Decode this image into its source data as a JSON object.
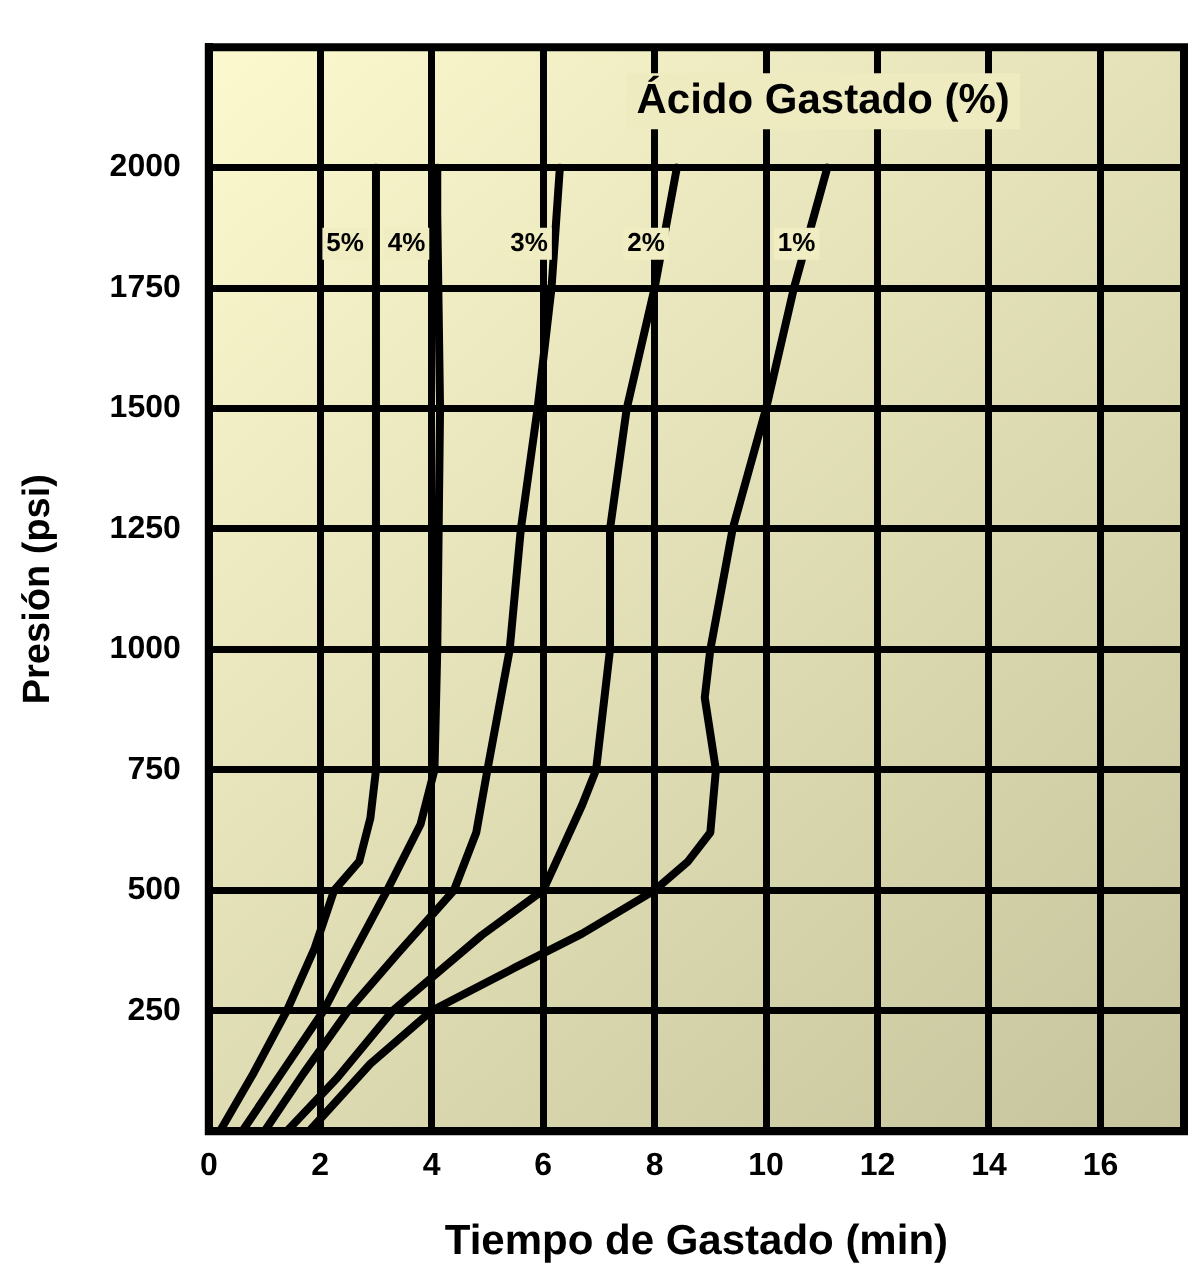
{
  "chart_data": {
    "type": "line",
    "title": "Ácido Gastado (%)",
    "xlabel": "Tiempo de Gastado (min)",
    "ylabel": "Presión (psi)",
    "xlim": [
      0,
      17.5
    ],
    "xticks": [
      0,
      2,
      4,
      6,
      8,
      10,
      12,
      14,
      16
    ],
    "ylim": [
      0,
      2250
    ],
    "yticks": [
      250,
      500,
      750,
      1000,
      1250,
      1500,
      1750,
      2000
    ],
    "grid": true,
    "legend": false,
    "marker": "none",
    "line_style": "solid",
    "series": [
      {
        "name": "5%",
        "color": "#000000",
        "x": [
          0.2,
          0.8,
          1.4,
          1.9,
          2.25,
          2.7,
          2.9,
          3.0,
          3.0,
          3.0,
          3.0
        ],
        "values": [
          0,
          120,
          250,
          380,
          500,
          560,
          650,
          750,
          1000,
          1500,
          2000
        ]
      },
      {
        "name": "4%",
        "color": "#000000",
        "x": [
          0.6,
          1.3,
          2.06,
          2.6,
          3.2,
          3.8,
          4.05,
          4.1,
          4.15,
          4.1,
          4.1
        ],
        "values": [
          0,
          120,
          250,
          370,
          500,
          637,
          750,
          1000,
          1500,
          1900,
          2000
        ]
      },
      {
        "name": "3%",
        "color": "#000000",
        "x": [
          1.0,
          1.7,
          2.5,
          3.4,
          4.4,
          4.8,
          5.0,
          5.4,
          5.6,
          5.9,
          6.15,
          6.3
        ],
        "values": [
          0,
          120,
          250,
          370,
          500,
          620,
          750,
          1000,
          1250,
          1500,
          1750,
          2000
        ]
      },
      {
        "name": "2%",
        "color": "#000000",
        "x": [
          1.4,
          2.3,
          3.3,
          4.9,
          6.0,
          6.7,
          6.95,
          7.2,
          7.2,
          7.5,
          8.0,
          8.4
        ],
        "values": [
          0,
          110,
          250,
          407,
          500,
          677,
          750,
          1000,
          1250,
          1500,
          1750,
          2000
        ]
      },
      {
        "name": "1%",
        "color": "#000000",
        "x": [
          1.8,
          2.9,
          4.0,
          5.5,
          6.7,
          8.0,
          8.6,
          9.0,
          9.1,
          8.9,
          9.0,
          9.4,
          10.0,
          10.5,
          11.1
        ],
        "values": [
          0,
          140,
          250,
          340,
          410,
          500,
          560,
          620,
          750,
          900,
          1000,
          1250,
          1500,
          1750,
          2000
        ]
      }
    ]
  }
}
